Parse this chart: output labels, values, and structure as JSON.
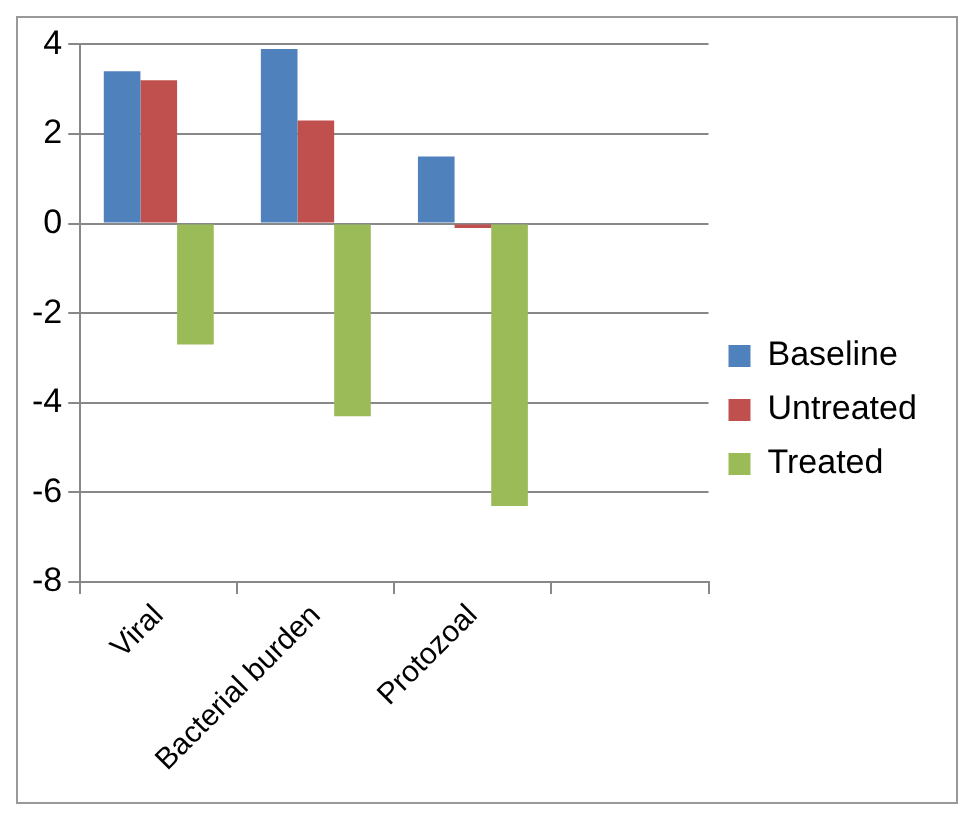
{
  "chart_data": {
    "type": "bar",
    "categories": [
      "Viral",
      "Bacterial burden",
      "Protozoal",
      null
    ],
    "series": [
      {
        "name": "Baseline",
        "color": "#4f81bd",
        "values": [
          3.4,
          3.9,
          1.5,
          null
        ]
      },
      {
        "name": "Untreated",
        "color": "#c0504d",
        "values": [
          3.2,
          2.3,
          -0.1,
          null
        ]
      },
      {
        "name": "Treated",
        "color": "#9bbb59",
        "values": [
          -2.7,
          -4.3,
          -6.3,
          null
        ]
      }
    ],
    "ylim": [
      -8,
      4
    ],
    "yticks": [
      -8,
      -6,
      -4,
      -2,
      0,
      2,
      4
    ],
    "grid": "y",
    "legend": "right"
  }
}
